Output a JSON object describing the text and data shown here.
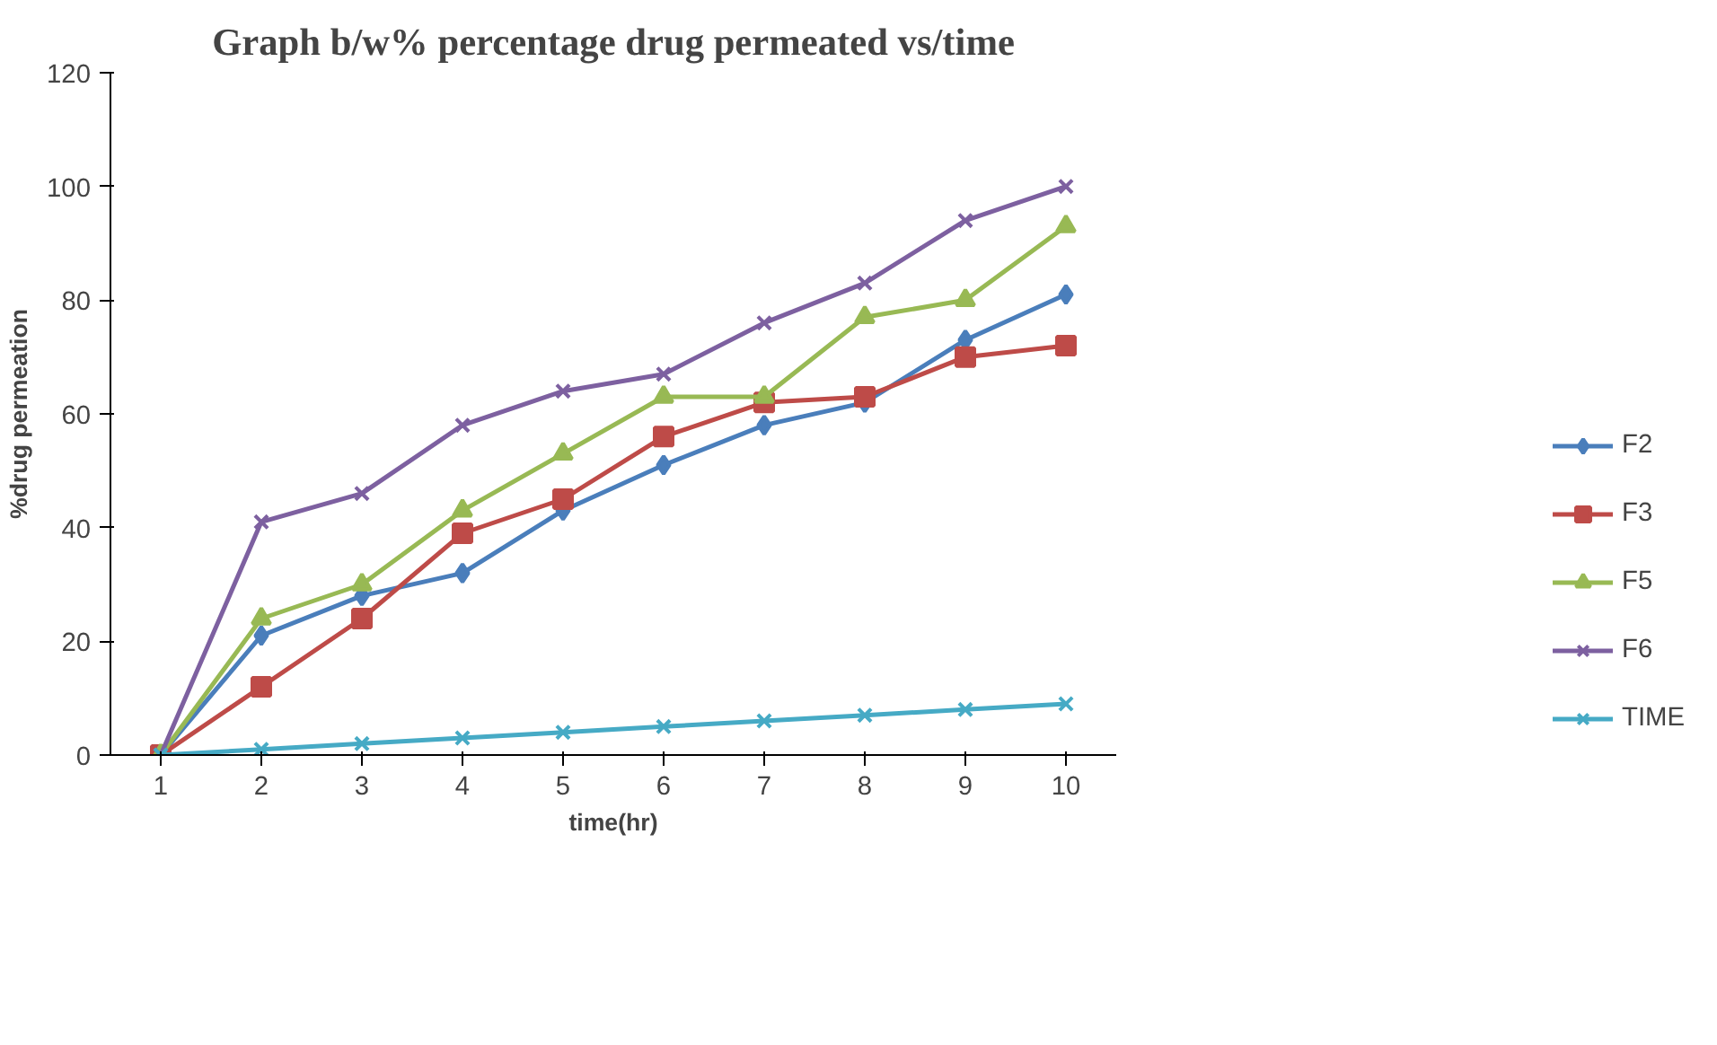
{
  "chart_data": {
    "type": "line",
    "title": "Graph b/w% percentage drug permeated vs/time",
    "xlabel": "time(hr)",
    "ylabel": "%drug permeation",
    "categories": [
      "1",
      "2",
      "3",
      "4",
      "5",
      "6",
      "7",
      "8",
      "9",
      "10"
    ],
    "ylim": [
      0,
      120
    ],
    "yticks": [
      0,
      20,
      40,
      60,
      80,
      100,
      120
    ],
    "grid": false,
    "legend": "right",
    "series": [
      {
        "name": "F2",
        "color": "#4a7ebb",
        "marker": "diamond",
        "values": [
          0,
          21,
          28,
          32,
          43,
          51,
          58,
          62,
          73,
          81
        ]
      },
      {
        "name": "F3",
        "color": "#be4b48",
        "marker": "square",
        "values": [
          0,
          12,
          24,
          39,
          45,
          56,
          62,
          63,
          70,
          72
        ]
      },
      {
        "name": "F5",
        "color": "#98b954",
        "marker": "triangle",
        "values": [
          0,
          24,
          30,
          43,
          53,
          63,
          63,
          77,
          80,
          93
        ]
      },
      {
        "name": "F6",
        "color": "#7d60a0",
        "marker": "cross",
        "values": [
          0,
          41,
          46,
          58,
          64,
          67,
          76,
          83,
          94,
          100
        ]
      },
      {
        "name": "TIME",
        "color": "#46aac5",
        "marker": "cross",
        "values": [
          0,
          1,
          2,
          3,
          4,
          5,
          6,
          7,
          8,
          9
        ]
      }
    ]
  }
}
